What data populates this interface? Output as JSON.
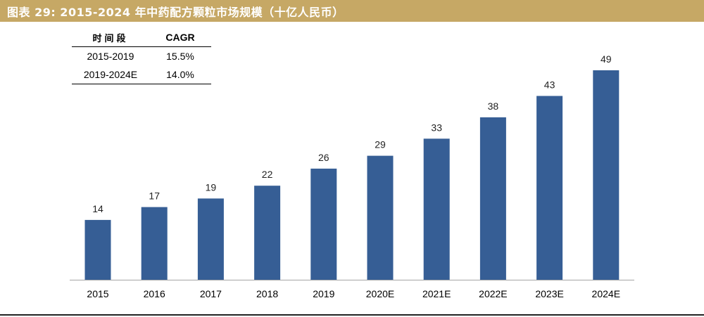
{
  "title": "图表 29:  2015-2024 年中药配方颗粒市场规模（十亿人民币）",
  "cagr_table": {
    "headers": [
      "时间段",
      "CAGR"
    ],
    "rows": [
      [
        "2015-2019",
        "15.5%"
      ],
      [
        "2019-2024E",
        "14.0%"
      ]
    ]
  },
  "colors": {
    "title_bar": "#c6a865",
    "bar": "#365e95"
  },
  "chart_data": {
    "type": "bar",
    "categories": [
      "2015",
      "2016",
      "2017",
      "2018",
      "2019",
      "2020E",
      "2021E",
      "2022E",
      "2023E",
      "2024E"
    ],
    "values": [
      14,
      17,
      19,
      22,
      26,
      29,
      33,
      38,
      43,
      49
    ],
    "data_labels": [
      "14",
      "17",
      "19",
      "22",
      "26",
      "29",
      "33",
      "38",
      "43",
      "49"
    ],
    "title": "",
    "xlabel": "",
    "ylabel": "",
    "ylim": [
      0,
      49
    ],
    "grid": false,
    "legend": "none"
  }
}
